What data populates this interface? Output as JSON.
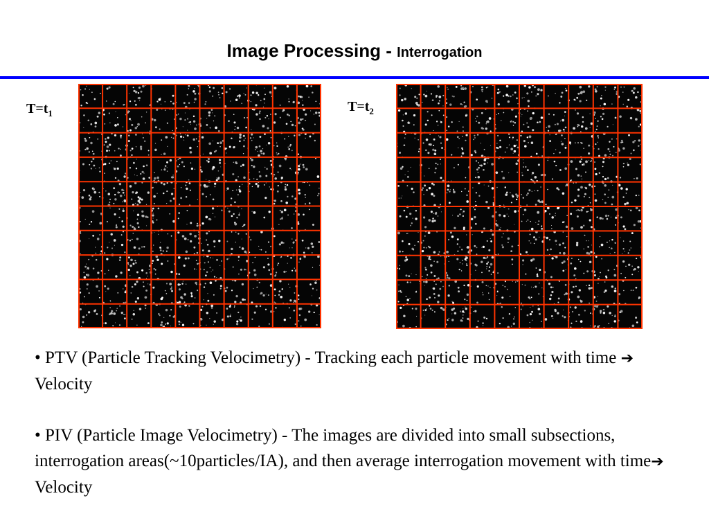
{
  "slide": {
    "title_main": "Image Processing - ",
    "title_sub": "Interrogation",
    "accent_rule_color": "#0000ff"
  },
  "frames": [
    {
      "label_base": "T=t",
      "label_sub": "1",
      "grid_rows": 10,
      "grid_cols": 10,
      "grid_color": "#ff3300",
      "content": "particle-image"
    },
    {
      "label_base": "T=t",
      "label_sub": "2",
      "grid_rows": 10,
      "grid_cols": 10,
      "grid_color": "#ff3300",
      "content": "particle-image"
    }
  ],
  "bullets": [
    {
      "marker": "•",
      "text_before_arrow": "PTV (Particle Tracking Velocimetry) - Tracking each particle movement with time ",
      "arrow_icon": "right-arrow-icon",
      "arrow_glyph": "➔",
      "text_after_arrow": " Velocity"
    },
    {
      "marker": "•",
      "text_before_arrow": "PIV (Particle Image Velocimetry) - The images are divided into small subsections, interrogation areas(~10particles/IA), and then average interrogation movement with time",
      "arrow_icon": "right-arrow-icon",
      "arrow_glyph": "➔",
      "text_after_arrow": " Velocity"
    }
  ]
}
